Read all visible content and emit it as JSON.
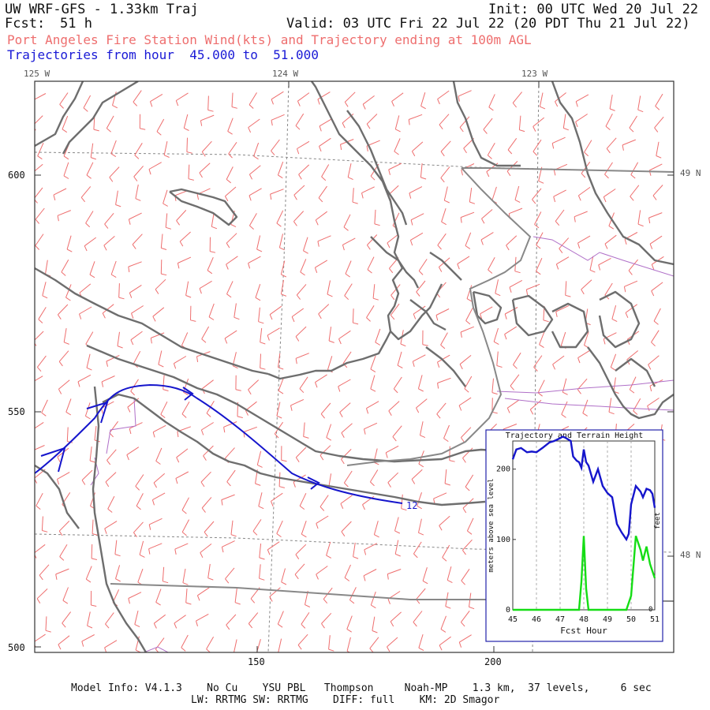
{
  "header": {
    "title": "UW WRF-GFS - 1.33km Traj",
    "init": "Init: 00 UTC Wed 20 Jul 22",
    "fcst_label": "Fcst:",
    "fcst_value": "51 h",
    "valid": "Valid: 03 UTC Fri 22 Jul 22 (20 PDT Thu 21 Jul 22)",
    "subtitle": "Port Angeles Fire Station Wind(kts) and Trajectory ending at 100m AGL",
    "traj_hours": "Trajectories from hour  45.000 to  51.000"
  },
  "map": {
    "lon_labels": [
      "125 W",
      "124 W",
      "123 W"
    ],
    "lat_labels": [
      "49 N",
      "48 N"
    ],
    "y_grid_labels": [
      "600",
      "550",
      "500"
    ],
    "x_grid_labels": [
      "150",
      "200"
    ],
    "trajectory_end_label": "12"
  },
  "inset": {
    "title": "Trajectory and Terrain Height",
    "ylabel": "meters above sea level",
    "ylabel_right": "feet",
    "y_ticks": [
      "200",
      "100",
      "0"
    ],
    "y_tick_right": "0",
    "x_ticks": [
      "45",
      "46",
      "47",
      "48",
      "49",
      "50",
      "51"
    ],
    "xlabel": "Fcst Hour"
  },
  "chart_data": {
    "type": "line",
    "title": "Trajectory and Terrain Height",
    "xlabel": "Fcst Hour",
    "ylabel": "meters above sea level",
    "xlim": [
      45,
      51
    ],
    "ylim": [
      0,
      240
    ],
    "x": [
      45.0,
      45.15,
      45.35,
      45.6,
      45.8,
      46.0,
      46.25,
      46.55,
      46.75,
      47.0,
      47.1,
      47.2,
      47.45,
      47.55,
      47.7,
      47.8,
      47.9,
      48.0,
      48.1,
      48.2,
      48.4,
      48.6,
      48.8,
      49.0,
      49.2,
      49.4,
      49.6,
      49.8,
      49.9,
      50.0,
      50.2,
      50.4,
      50.5,
      50.65,
      50.8,
      50.9,
      51.0
    ],
    "series": [
      {
        "color": "#1515cc",
        "values": [
          214,
          228,
          230,
          224,
          225,
          224,
          230,
          238,
          240,
          244,
          246,
          245,
          240,
          218,
          212,
          210,
          202,
          228,
          210,
          205,
          182,
          200,
          176,
          166,
          160,
          122,
          110,
          100,
          108,
          150,
          176,
          168,
          160,
          172,
          170,
          165,
          145
        ]
      },
      {
        "color": "#15dd15",
        "values": [
          0,
          0,
          0,
          0,
          0,
          0,
          0,
          0,
          0,
          0,
          0,
          0,
          0,
          0,
          0,
          0,
          40,
          105,
          30,
          0,
          0,
          0,
          0,
          0,
          0,
          0,
          0,
          0,
          10,
          20,
          105,
          85,
          70,
          90,
          65,
          55,
          45
        ]
      }
    ]
  },
  "footer": {
    "line1": "Model Info: V4.1.3    No Cu    YSU PBL   Thompson     Noah-MP    1.3 km,  37 levels,     6 sec",
    "line2": "LW: RRTMG SW: RRTMG    DIFF: full    KM: 2D Smagor"
  },
  "colors": {
    "coast": "#6e6e6e",
    "barbs": "#ee6e6e",
    "trajectory": "#1515cc",
    "terrain": "#15dd15",
    "border_purple": "#b070c8",
    "grid": "#888888"
  }
}
